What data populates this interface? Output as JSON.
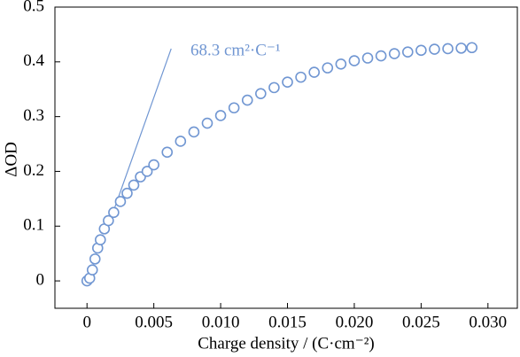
{
  "chart_data": {
    "type": "scatter",
    "xlabel": "Charge density  / (C·cm⁻²)",
    "ylabel": "ΔOD",
    "annotation": "68.3 cm²·C⁻¹",
    "color": "#7096d2",
    "x": [
      0,
      0.0002,
      0.0004,
      0.0006,
      0.0008,
      0.001,
      0.0013,
      0.0016,
      0.002,
      0.0025,
      0.003,
      0.0035,
      0.004,
      0.0045,
      0.005,
      0.006,
      0.007,
      0.008,
      0.009,
      0.01,
      0.011,
      0.012,
      0.013,
      0.014,
      0.015,
      0.016,
      0.017,
      0.018,
      0.019,
      0.02,
      0.021,
      0.022,
      0.023,
      0.024,
      0.025,
      0.026,
      0.027,
      0.028,
      0.0288
    ],
    "values": [
      0,
      0.005,
      0.02,
      0.04,
      0.06,
      0.075,
      0.095,
      0.11,
      0.125,
      0.145,
      0.16,
      0.175,
      0.19,
      0.2,
      0.212,
      0.235,
      0.255,
      0.272,
      0.288,
      0.302,
      0.316,
      0.33,
      0.342,
      0.353,
      0.363,
      0.372,
      0.381,
      0.389,
      0.396,
      0.402,
      0.407,
      0.411,
      0.415,
      0.418,
      0.421,
      0.423,
      0.424,
      0.425,
      0.426
    ],
    "fit": {
      "x": [
        0.0018,
        0.0063
      ],
      "values": [
        0.115,
        0.424
      ]
    },
    "xlim": [
      -0.0024,
      0.0322
    ],
    "ylim": [
      -0.05,
      0.5
    ],
    "xticks": [
      0,
      0.005,
      {
        "value": 0.01,
        "label": "0.010"
      },
      0.015,
      {
        "value": 0.02,
        "label": "0.020"
      },
      0.025,
      {
        "value": 0.03,
        "label": "0.030"
      }
    ],
    "yticks": [
      0,
      0.1,
      0.2,
      0.3,
      0.4,
      0.5
    ]
  }
}
